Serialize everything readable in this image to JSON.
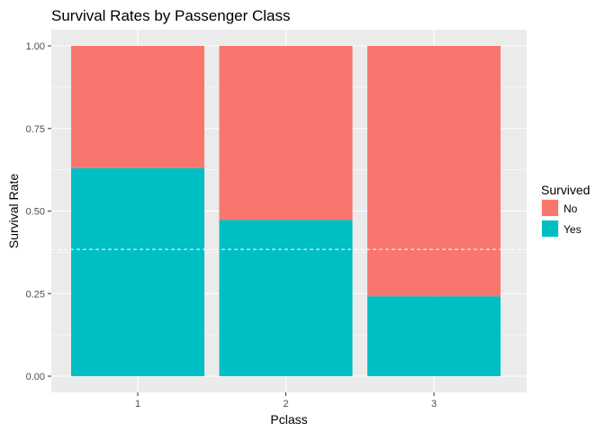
{
  "chart_data": {
    "type": "bar",
    "stacked": true,
    "title": "Survival Rates by Passenger Class",
    "xlabel": "Pclass",
    "ylabel": "Survival Rate",
    "categories": [
      "1",
      "2",
      "3"
    ],
    "series": [
      {
        "name": "No",
        "color": "#F8766D",
        "values": [
          0.37,
          0.527,
          0.758
        ]
      },
      {
        "name": "Yes",
        "color": "#00BFC4",
        "values": [
          0.63,
          0.473,
          0.242
        ]
      }
    ],
    "ylim": [
      0,
      1
    ],
    "yticks": [
      0,
      0.25,
      0.5,
      0.75,
      1
    ],
    "ytick_labels": [
      "0.00",
      "0.25",
      "0.50",
      "0.75",
      "1.00"
    ],
    "reference_line": {
      "y": 0.384,
      "style": "dashed",
      "color": "#ffffff"
    },
    "legend": {
      "title": "Survived",
      "entries": [
        "No",
        "Yes"
      ],
      "placement": "right"
    },
    "grid": true,
    "panel_background": "#EBEBEB"
  }
}
